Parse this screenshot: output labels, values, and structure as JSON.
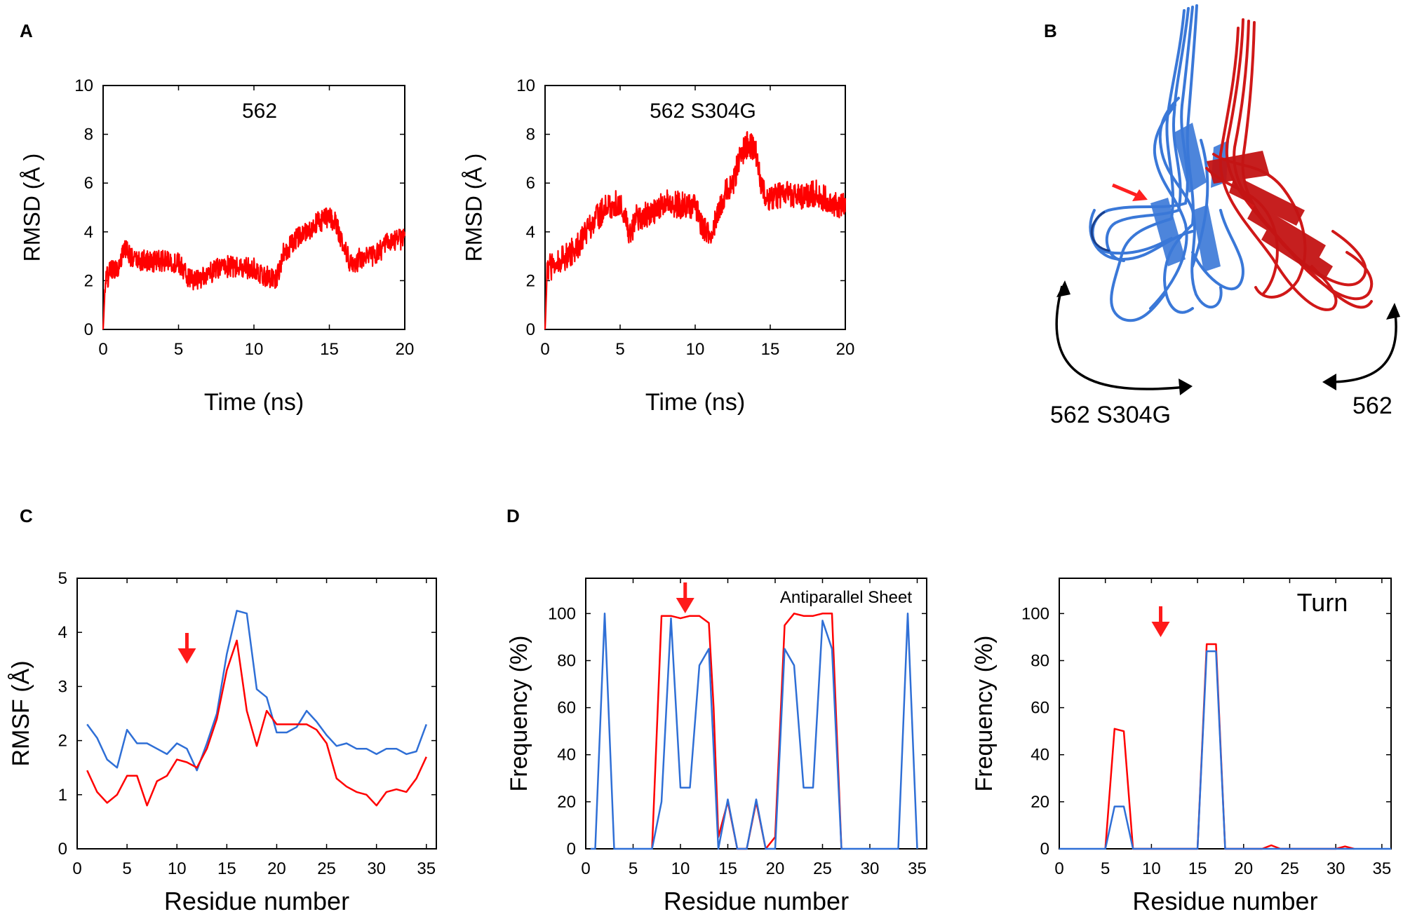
{
  "figure": {
    "panel_labels": [
      "A",
      "B",
      "C",
      "D"
    ],
    "molecule_labels": {
      "mutant": "562 S304G",
      "wildtype": "562"
    }
  },
  "colors": {
    "wildtype": "#ff0000",
    "mutant": "#2f6fd6",
    "axis": "#000000",
    "structure_blue": "#3a78d8",
    "structure_red": "#d01818"
  },
  "chart_data": [
    {
      "id": "A1",
      "type": "line",
      "title": "562",
      "xlabel": "Time  (ns)",
      "ylabel": "RMSD  (Å )",
      "xlim": [
        0,
        20
      ],
      "ylim": [
        0,
        10
      ],
      "xticks": [
        0,
        5,
        10,
        15,
        20
      ],
      "yticks": [
        0,
        2,
        4,
        6,
        8,
        10
      ],
      "series": [
        {
          "name": "562",
          "color": "#ff0000",
          "noise": 0.45,
          "x": [
            0,
            0.15,
            0.5,
            1,
            1.5,
            2,
            3,
            4,
            5,
            6,
            7,
            8,
            9,
            10,
            11,
            11.5,
            12,
            13,
            14,
            15,
            15.5,
            16,
            16.5,
            17,
            18,
            19,
            20
          ],
          "y": [
            0,
            2.0,
            2.4,
            2.6,
            3.4,
            2.8,
            2.8,
            2.8,
            2.7,
            1.9,
            2.3,
            2.6,
            2.5,
            2.5,
            2.1,
            2.1,
            3.2,
            3.8,
            4.3,
            4.6,
            4.3,
            3.3,
            2.6,
            2.9,
            3.0,
            3.6,
            3.7
          ]
        }
      ]
    },
    {
      "id": "A2",
      "type": "line",
      "title": "562 S304G",
      "xlabel": "Time  (ns)",
      "ylabel": "RMSD  (Å )",
      "xlim": [
        0,
        20
      ],
      "ylim": [
        0,
        10
      ],
      "xticks": [
        0,
        5,
        10,
        15,
        20
      ],
      "yticks": [
        0,
        2,
        4,
        6,
        8,
        10
      ],
      "series": [
        {
          "name": "562 S304G",
          "color": "#ff0000",
          "noise": 0.55,
          "x": [
            0,
            0.15,
            0.5,
            1,
            2,
            3,
            4,
            5,
            5.7,
            6,
            7,
            8,
            9,
            10,
            10.5,
            11,
            12,
            12.5,
            13,
            13.5,
            14,
            14.5,
            15,
            16,
            17,
            18,
            19,
            20
          ],
          "y": [
            0,
            2.5,
            2.6,
            2.8,
            3.3,
            4.2,
            5.0,
            5.2,
            3.8,
            4.6,
            4.7,
            5.2,
            5.1,
            5.0,
            4.2,
            3.9,
            5.6,
            6.0,
            7.1,
            7.6,
            7.4,
            5.6,
            5.3,
            5.6,
            5.4,
            5.6,
            5.2,
            5.0
          ]
        }
      ]
    },
    {
      "id": "C",
      "type": "line",
      "xlabel": "Residue number",
      "ylabel": "RMSF  (Å)",
      "xlim": [
        0,
        36
      ],
      "ylim": [
        0,
        5
      ],
      "xticks": [
        0,
        5,
        10,
        15,
        20,
        25,
        30,
        35
      ],
      "yticks": [
        0,
        1,
        2,
        3,
        4,
        5
      ],
      "arrow_at": 11,
      "series": [
        {
          "name": "562 S304G",
          "color": "#2f6fd6",
          "x": [
            1,
            2,
            3,
            4,
            5,
            6,
            7,
            8,
            9,
            10,
            11,
            12,
            13,
            14,
            15,
            16,
            17,
            18,
            19,
            20,
            21,
            22,
            23,
            24,
            25,
            26,
            27,
            28,
            29,
            30,
            31,
            32,
            33,
            34,
            35
          ],
          "y": [
            2.3,
            2.05,
            1.65,
            1.5,
            2.2,
            1.95,
            1.95,
            1.85,
            1.75,
            1.95,
            1.85,
            1.45,
            1.95,
            2.5,
            3.6,
            4.4,
            4.35,
            2.95,
            2.8,
            2.15,
            2.15,
            2.25,
            2.55,
            2.35,
            2.1,
            1.9,
            1.95,
            1.85,
            1.85,
            1.75,
            1.85,
            1.85,
            1.75,
            1.8,
            2.3
          ]
        },
        {
          "name": "562",
          "color": "#ff0000",
          "x": [
            1,
            2,
            3,
            4,
            5,
            6,
            7,
            8,
            9,
            10,
            11,
            12,
            13,
            14,
            15,
            16,
            17,
            18,
            19,
            20,
            21,
            22,
            23,
            24,
            25,
            26,
            27,
            28,
            29,
            30,
            31,
            32,
            33,
            34,
            35
          ],
          "y": [
            1.45,
            1.05,
            0.85,
            1.0,
            1.35,
            1.35,
            0.8,
            1.25,
            1.35,
            1.65,
            1.6,
            1.5,
            1.85,
            2.4,
            3.3,
            3.85,
            2.55,
            1.9,
            2.55,
            2.3,
            2.3,
            2.3,
            2.3,
            2.2,
            1.95,
            1.3,
            1.15,
            1.05,
            1.0,
            0.8,
            1.05,
            1.1,
            1.05,
            1.3,
            1.7
          ]
        }
      ]
    },
    {
      "id": "D1",
      "type": "line",
      "title": "Antiparallel Sheet",
      "xlabel": "Residue number",
      "ylabel": "Frequency (%)",
      "xlim": [
        0,
        36
      ],
      "ylim": [
        0,
        115
      ],
      "xticks": [
        0,
        5,
        10,
        15,
        20,
        25,
        30,
        35
      ],
      "yticks": [
        0,
        20,
        40,
        60,
        80,
        100
      ],
      "arrow_at": 10.5,
      "series": [
        {
          "name": "562",
          "color": "#ff0000",
          "dashed_under": true,
          "x": [
            7,
            8,
            9,
            10,
            11,
            12,
            13,
            13.5,
            14,
            15,
            16,
            17,
            18,
            19,
            20,
            21,
            22,
            23,
            24,
            25,
            26,
            27
          ],
          "y": [
            0,
            99,
            99,
            98,
            99,
            99,
            96,
            60,
            5,
            20,
            0,
            0,
            20,
            0,
            5,
            95,
            100,
            99,
            99,
            100,
            100,
            0
          ]
        },
        {
          "name": "562 S304G",
          "color": "#2f6fd6",
          "x": [
            0.5,
            1,
            2,
            3,
            4,
            5,
            6,
            7,
            8,
            9,
            10,
            11,
            12,
            13,
            14,
            15,
            16,
            17,
            18,
            19,
            20,
            21,
            22,
            23,
            24,
            25,
            26,
            27,
            28,
            29,
            30,
            31,
            32,
            33,
            34,
            35
          ],
          "y": [
            0,
            0,
            100,
            0,
            0,
            0,
            0,
            0,
            20,
            98,
            26,
            26,
            78,
            85,
            0,
            21,
            0,
            0,
            21,
            0,
            0,
            85,
            78,
            26,
            26,
            97,
            85,
            0,
            0,
            0,
            0,
            0,
            0,
            0,
            100,
            0
          ]
        }
      ]
    },
    {
      "id": "D2",
      "type": "line",
      "title": "Turn",
      "xlabel": "Residue number",
      "ylabel": "Frequency (%)",
      "xlim": [
        0,
        36
      ],
      "ylim": [
        0,
        115
      ],
      "xticks": [
        0,
        5,
        10,
        15,
        20,
        25,
        30,
        35
      ],
      "yticks": [
        0,
        20,
        40,
        60,
        80,
        100
      ],
      "arrow_at": 11,
      "series": [
        {
          "name": "562",
          "color": "#ff0000",
          "dashed_under": true,
          "x": [
            5,
            6,
            7,
            8,
            15,
            16,
            17,
            18,
            22,
            23,
            24,
            30,
            31,
            32
          ],
          "y": [
            0,
            51,
            50,
            0,
            0,
            87,
            87,
            0,
            0,
            1.5,
            0,
            0,
            1,
            0
          ]
        },
        {
          "name": "562 S304G",
          "color": "#2f6fd6",
          "x": [
            0,
            5,
            6,
            7,
            8,
            15,
            16,
            17,
            18,
            36
          ],
          "y": [
            0,
            0,
            18,
            18,
            0,
            0,
            84,
            84,
            0,
            0
          ]
        }
      ]
    }
  ]
}
